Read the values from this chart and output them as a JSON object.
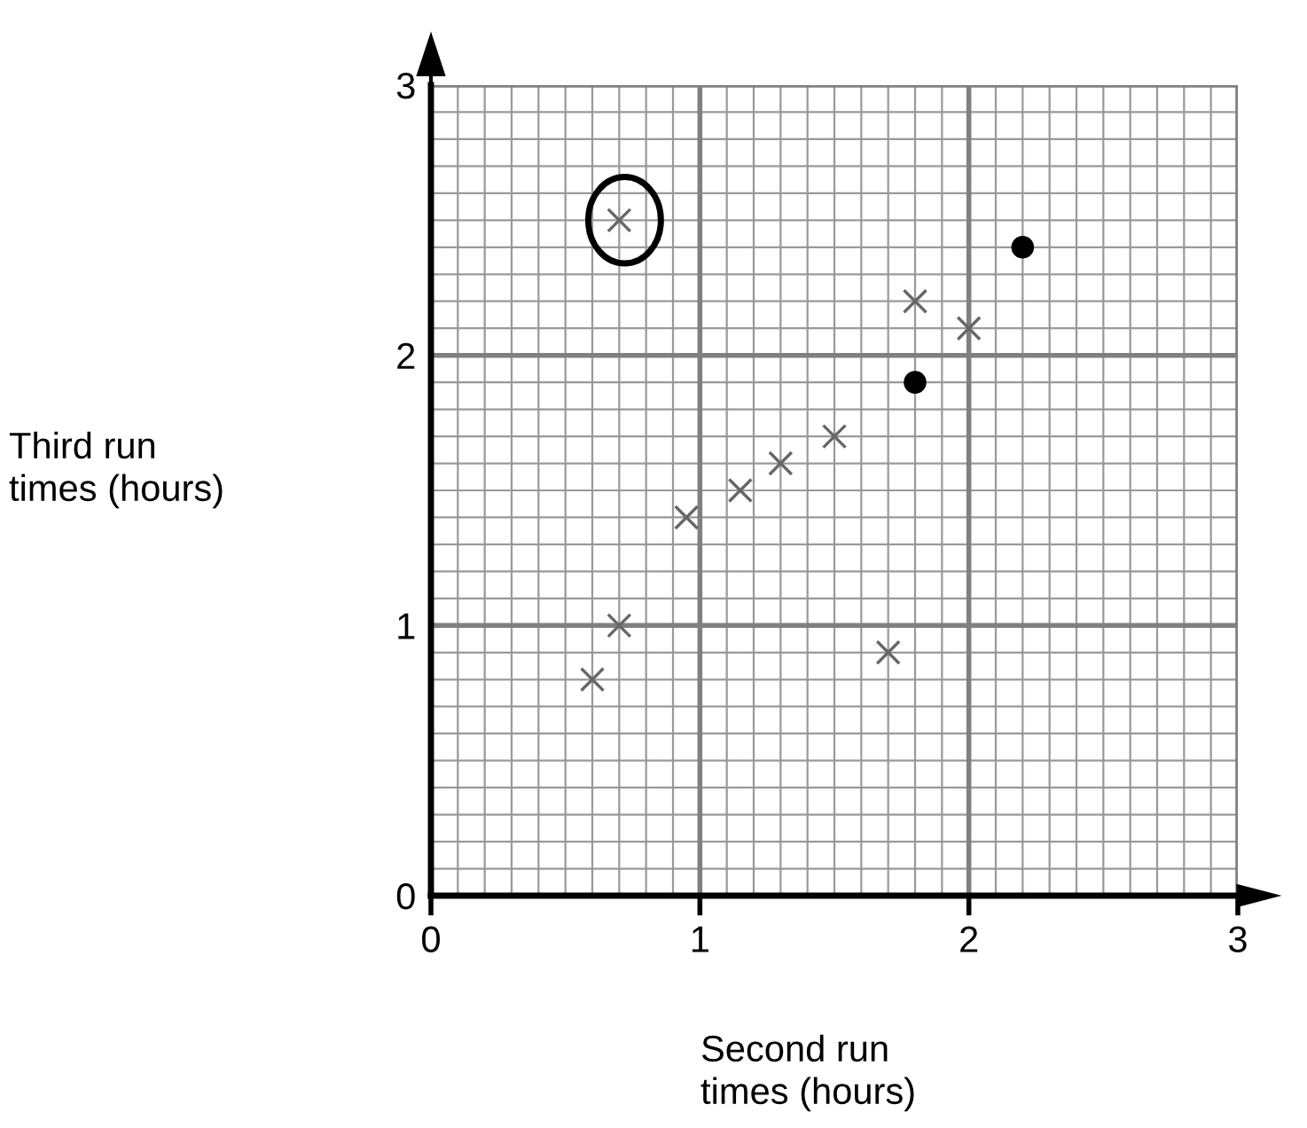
{
  "chart_data": {
    "type": "scatter",
    "xlabel": "Second run\ntimes (hours)",
    "ylabel": "Third run\ntimes (hours)",
    "xlim": [
      0,
      3
    ],
    "ylim": [
      0,
      3
    ],
    "xticks": [
      0,
      1,
      2,
      3
    ],
    "yticks": [
      0,
      1,
      2,
      3
    ],
    "grid": true,
    "legend": false,
    "series": [
      {
        "color": "#666666",
        "marker": "cross",
        "x": [
          0.6,
          0.7,
          0.95,
          1.15,
          1.3,
          1.5,
          1.7,
          1.8,
          2.0,
          0.7
        ],
        "values": [
          0.8,
          1.0,
          1.4,
          1.5,
          1.6,
          1.7,
          0.9,
          2.2,
          2.1,
          2.5
        ]
      },
      {
        "color": "#000000",
        "marker": "circle",
        "x": [
          1.8,
          2.2
        ],
        "values": [
          1.9,
          2.4
        ]
      }
    ]
  }
}
